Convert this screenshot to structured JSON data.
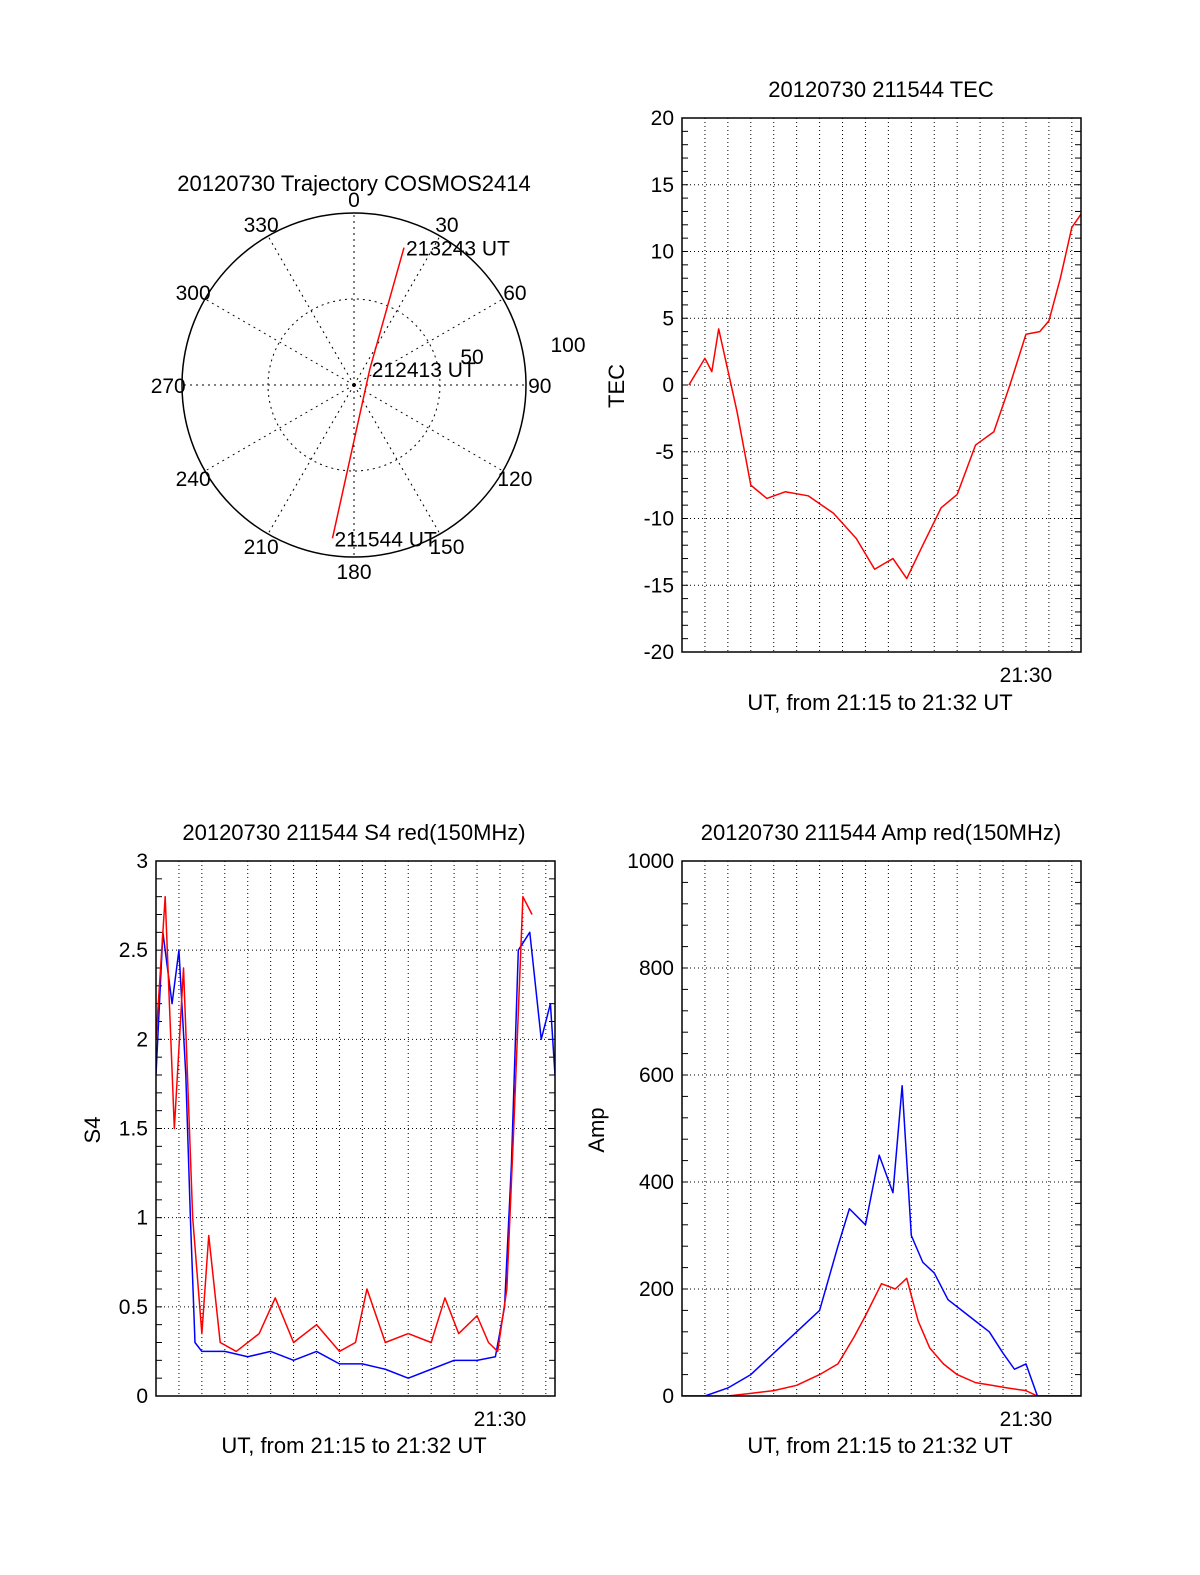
{
  "chart_data": [
    {
      "type": "polar",
      "title": "20120730 Trajectory COSMOS2414",
      "angle_labels": [
        "0",
        "30",
        "60",
        "90",
        "120",
        "150",
        "180",
        "210",
        "240",
        "270",
        "300",
        "330"
      ],
      "radial_labels": [
        "50",
        "100"
      ],
      "rlim": [
        0,
        100
      ],
      "grid": true,
      "series": [
        {
          "color": "#ff0000",
          "points": [
            {
              "az": 20,
              "r": 85
            },
            {
              "az": 45,
              "r": 13
            },
            {
              "az": 188,
              "r": 90
            }
          ]
        }
      ],
      "annotations": [
        {
          "text": "213243 UT",
          "az": 20,
          "r": 85
        },
        {
          "text": "212413 UT",
          "az": 45,
          "r": 13
        },
        {
          "text": "211544 UT",
          "az": 188,
          "r": 90
        }
      ]
    },
    {
      "type": "line",
      "title": "20120730 211544 TEC",
      "xlabel": "UT, from 21:15 to 21:32 UT",
      "ylabel": "TEC",
      "xlim": [
        0,
        17.4
      ],
      "ylim": [
        -20,
        20
      ],
      "yticks": [
        -20,
        -15,
        -10,
        -5,
        0,
        5,
        10,
        15,
        20
      ],
      "xtick_labels": [
        {
          "value": 15,
          "label": "21:30"
        }
      ],
      "grid": true,
      "series": [
        {
          "color": "#ff0000",
          "x": [
            0.3,
            1.0,
            1.3,
            1.6,
            2.4,
            3.0,
            3.7,
            4.5,
            5.5,
            6.6,
            7.6,
            8.4,
            9.2,
            9.8,
            10.5,
            11.3,
            12.0,
            12.8,
            13.6,
            14.3,
            15.0,
            15.6,
            16.0,
            16.5,
            17.0,
            17.4
          ],
          "y": [
            0,
            2,
            1,
            4.2,
            -2,
            -7.5,
            -8.5,
            -8,
            -8.3,
            -9.6,
            -11.5,
            -13.8,
            -13,
            -14.5,
            -12,
            -9.2,
            -8.2,
            -4.5,
            -3.5,
            0,
            3.8,
            4.0,
            4.8,
            8,
            11.8,
            12.8
          ]
        }
      ]
    },
    {
      "type": "line",
      "title": "20120730 211544 S4 red(150MHz)",
      "xlabel": "UT, from 21:15 to 21:32 UT",
      "ylabel": "S4",
      "xlim": [
        0,
        17.4
      ],
      "ylim": [
        0,
        3
      ],
      "yticks": [
        0,
        0.5,
        1,
        1.5,
        2,
        2.5,
        3
      ],
      "xtick_labels": [
        {
          "value": 15,
          "label": "21:30"
        }
      ],
      "grid": true,
      "series": [
        {
          "color": "#0000ff",
          "x": [
            0,
            0.3,
            0.7,
            1.0,
            1.3,
            1.5,
            1.7,
            2.0,
            3.0,
            4.0,
            5.0,
            6.0,
            7.0,
            8.0,
            9.0,
            10.0,
            11.0,
            12.0,
            13.0,
            14.0,
            14.8,
            15.2,
            15.5,
            15.8,
            16.3,
            16.8,
            17.2,
            17.4
          ],
          "y": [
            1.8,
            2.6,
            2.2,
            2.5,
            1.8,
            1.0,
            0.3,
            0.25,
            0.25,
            0.22,
            0.25,
            0.2,
            0.25,
            0.18,
            0.18,
            0.15,
            0.1,
            0.15,
            0.2,
            0.2,
            0.22,
            0.5,
            1.3,
            2.5,
            2.6,
            2.0,
            2.2,
            1.8
          ]
        },
        {
          "color": "#ff0000",
          "x": [
            0,
            0.4,
            0.8,
            1.2,
            1.6,
            2.0,
            2.3,
            2.8,
            3.5,
            4.5,
            5.2,
            6.0,
            7.0,
            8.0,
            8.7,
            9.2,
            10.0,
            11.0,
            12.0,
            12.6,
            13.2,
            14.0,
            14.5,
            14.9,
            15.3,
            15.6,
            16.0,
            16.4
          ],
          "y": [
            2.0,
            2.8,
            1.5,
            2.4,
            1.0,
            0.35,
            0.9,
            0.3,
            0.25,
            0.35,
            0.55,
            0.3,
            0.4,
            0.25,
            0.3,
            0.6,
            0.3,
            0.35,
            0.3,
            0.55,
            0.35,
            0.45,
            0.3,
            0.25,
            0.6,
            1.5,
            2.8,
            2.7
          ]
        }
      ]
    },
    {
      "type": "line",
      "title": "20120730 211544 Amp red(150MHz)",
      "xlabel": "UT, from 21:15 to 21:32 UT",
      "ylabel": "Amp",
      "xlim": [
        0,
        17.4
      ],
      "ylim": [
        0,
        1000
      ],
      "yticks": [
        0,
        200,
        400,
        600,
        800,
        1000
      ],
      "xtick_labels": [
        {
          "value": 15,
          "label": "21:30"
        }
      ],
      "grid": true,
      "series": [
        {
          "color": "#0000ff",
          "x": [
            0,
            1.0,
            2.0,
            3.0,
            4.0,
            5.0,
            6.0,
            6.8,
            7.3,
            8.0,
            8.6,
            9.2,
            9.6,
            10.0,
            10.5,
            11.0,
            11.6,
            12.2,
            12.8,
            13.4,
            14.0,
            14.5,
            15.0,
            15.5,
            16.0,
            17.4
          ],
          "y": [
            0,
            0,
            15,
            40,
            80,
            120,
            160,
            280,
            350,
            320,
            450,
            380,
            580,
            300,
            250,
            230,
            180,
            160,
            140,
            120,
            80,
            50,
            60,
            0,
            0,
            0
          ]
        },
        {
          "color": "#ff0000",
          "x": [
            0,
            2.0,
            3.0,
            4.0,
            5.0,
            6.0,
            6.8,
            7.5,
            8.0,
            8.7,
            9.3,
            9.8,
            10.3,
            10.8,
            11.4,
            12.0,
            12.8,
            13.5,
            14.2,
            15.0,
            15.5,
            17.4
          ],
          "y": [
            0,
            0,
            5,
            10,
            20,
            40,
            60,
            110,
            150,
            210,
            200,
            220,
            140,
            90,
            60,
            40,
            25,
            20,
            15,
            10,
            0,
            0
          ]
        }
      ]
    }
  ]
}
